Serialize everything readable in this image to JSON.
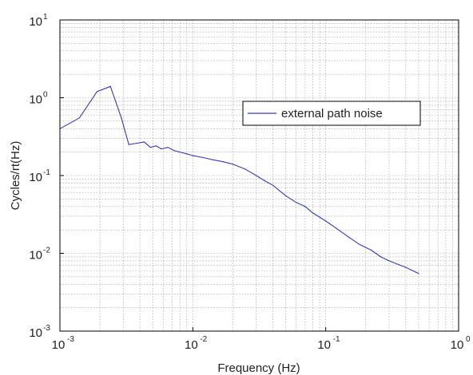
{
  "chart_data": {
    "type": "line",
    "title": "",
    "xlabel": "Frequency (Hz)",
    "ylabel": "Cycles/rt(Hz)",
    "xscale": "log",
    "yscale": "log",
    "xlim": [
      0.001,
      1
    ],
    "ylim": [
      0.001,
      10
    ],
    "grid": "major and minor, dotted",
    "legend_position": "upper-right",
    "line_color": "#3a3ab0",
    "x_ticks": [
      {
        "base": "10",
        "exp": "-3"
      },
      {
        "base": "10",
        "exp": "-2"
      },
      {
        "base": "10",
        "exp": "-1"
      },
      {
        "base": "10",
        "exp": "0"
      }
    ],
    "y_ticks": [
      {
        "base": "10",
        "exp": "-3"
      },
      {
        "base": "10",
        "exp": "-2"
      },
      {
        "base": "10",
        "exp": "-1"
      },
      {
        "base": "10",
        "exp": "0"
      },
      {
        "base": "10",
        "exp": "1"
      }
    ],
    "series": [
      {
        "name": "external path noise",
        "x": [
          0.001,
          0.0014,
          0.0019,
          0.0024,
          0.0029,
          0.0033,
          0.0038,
          0.0043,
          0.0048,
          0.0053,
          0.0058,
          0.0065,
          0.0072,
          0.008,
          0.009,
          0.01,
          0.012,
          0.014,
          0.017,
          0.02,
          0.025,
          0.03,
          0.035,
          0.04,
          0.05,
          0.06,
          0.07,
          0.08,
          0.1,
          0.12,
          0.15,
          0.18,
          0.22,
          0.26,
          0.3,
          0.35,
          0.4,
          0.45,
          0.5
        ],
        "y": [
          0.4,
          0.55,
          1.2,
          1.4,
          0.55,
          0.25,
          0.26,
          0.27,
          0.23,
          0.24,
          0.22,
          0.23,
          0.21,
          0.2,
          0.19,
          0.18,
          0.17,
          0.16,
          0.15,
          0.14,
          0.12,
          0.1,
          0.085,
          0.075,
          0.055,
          0.045,
          0.04,
          0.033,
          0.026,
          0.021,
          0.016,
          0.013,
          0.011,
          0.009,
          0.008,
          0.0072,
          0.0066,
          0.006,
          0.0055
        ]
      }
    ]
  }
}
